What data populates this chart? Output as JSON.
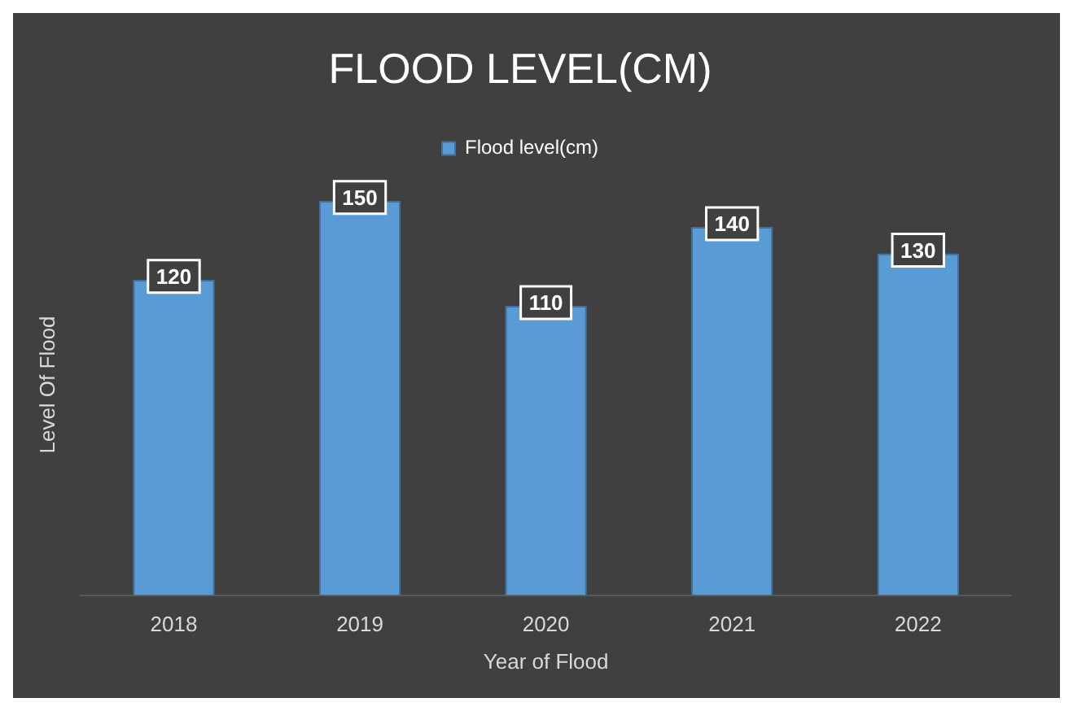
{
  "chart_data": {
    "type": "bar",
    "title": "FLOOD LEVEL(CM)",
    "xlabel": "Year of Flood",
    "ylabel": "Level Of Flood",
    "categories": [
      "2018",
      "2019",
      "2020",
      "2021",
      "2022"
    ],
    "series": [
      {
        "name": "Flood level(cm)",
        "color": "#5b9bd5",
        "values": [
          120,
          150,
          110,
          140,
          130
        ]
      }
    ],
    "data_labels": true,
    "legend": "top",
    "grid": false,
    "tick_labels": "x"
  }
}
